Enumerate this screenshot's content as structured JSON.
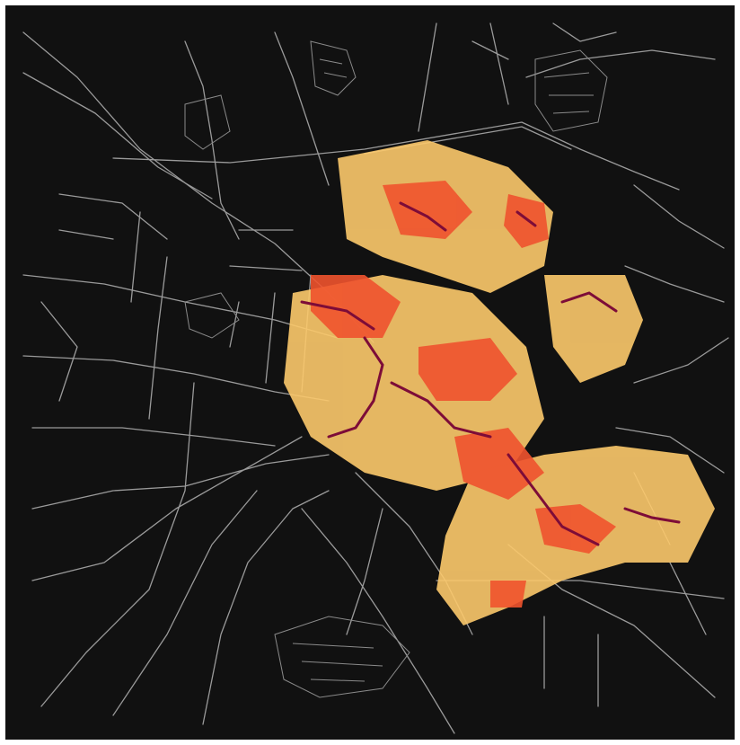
{
  "map": {
    "style": "dark street-network map with node-density heat overlay",
    "background_color": "#111111",
    "frame_color": "#ffffff",
    "road_color": "#9a9a9a",
    "heat_colors": {
      "low": "#fcc96b",
      "medium": "#f0532e",
      "high": "#7d0c38"
    },
    "legend": "none",
    "labels": "none"
  }
}
